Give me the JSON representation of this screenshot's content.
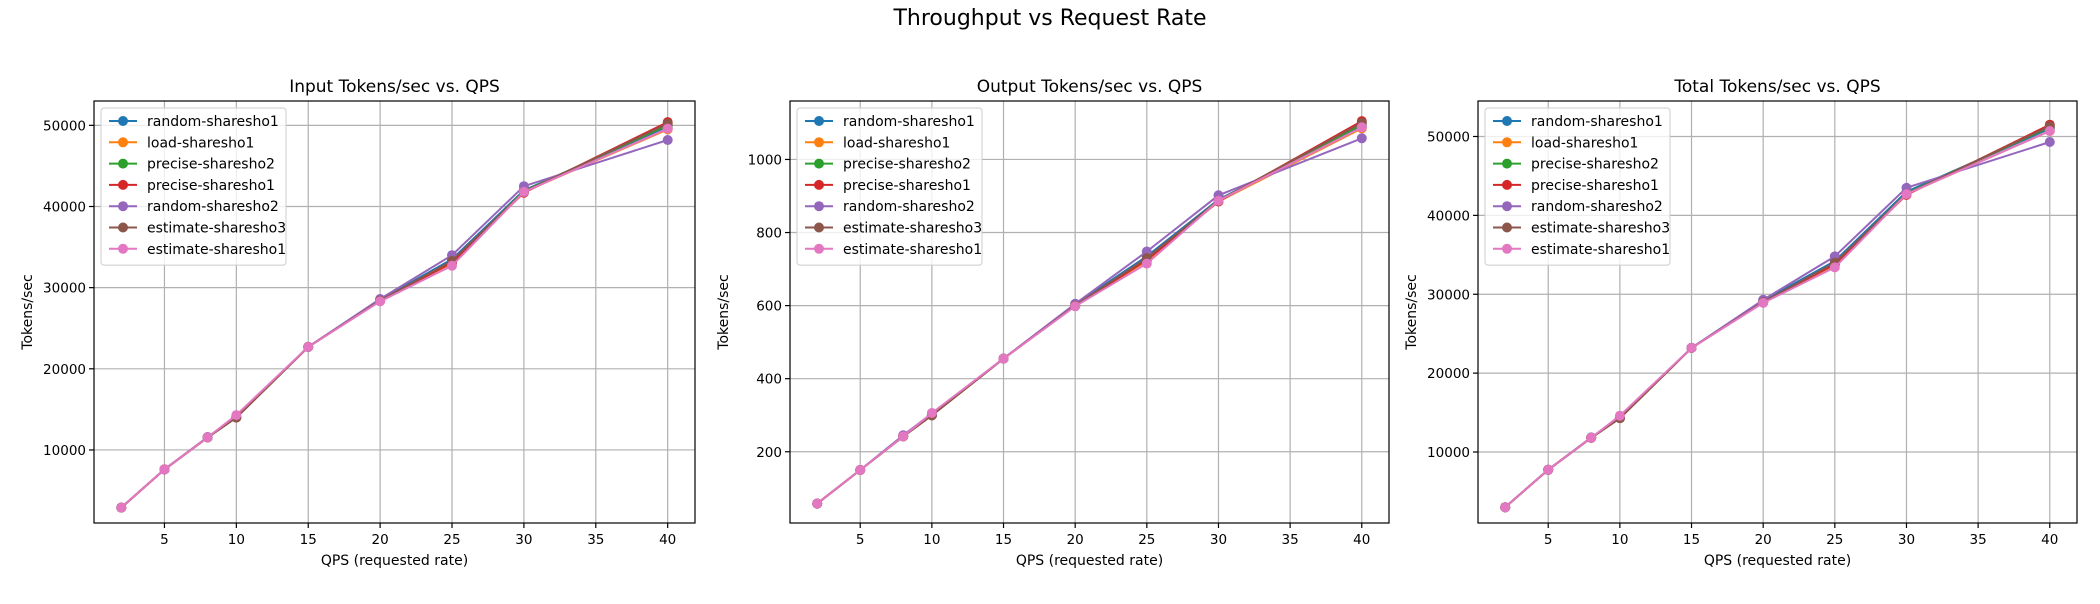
{
  "suptitle": "Throughput vs Request Rate",
  "series_styles": [
    {
      "name": "random-sharesho1",
      "color": "#1f77b4"
    },
    {
      "name": "load-sharesho1",
      "color": "#ff7f0e"
    },
    {
      "name": "precise-sharesho2",
      "color": "#2ca02c"
    },
    {
      "name": "precise-sharesho1",
      "color": "#d62728"
    },
    {
      "name": "random-sharesho2",
      "color": "#9467bd"
    },
    {
      "name": "estimate-sharesho3",
      "color": "#8c564b"
    },
    {
      "name": "estimate-sharesho1",
      "color": "#e377c2"
    }
  ],
  "chart_data": [
    {
      "type": "line",
      "title": "Input Tokens/sec vs. QPS",
      "xlabel": "QPS (requested rate)",
      "ylabel": "Tokens/sec",
      "xlim": [
        0.1,
        41.9
      ],
      "ylim": [
        1000,
        53000
      ],
      "xticks": [
        5,
        10,
        15,
        20,
        25,
        30,
        35,
        40
      ],
      "yticks": [
        10000,
        20000,
        30000,
        40000,
        50000
      ],
      "grid": true,
      "legend_position": "upper-left",
      "x": [
        2,
        5,
        8,
        10,
        15,
        20,
        25,
        30,
        40
      ],
      "series": [
        {
          "name": "random-sharesho1",
          "values": [
            2900,
            7600,
            11550,
            14000,
            22700,
            28500,
            33500,
            42000,
            49800
          ]
        },
        {
          "name": "load-sharesho1",
          "values": [
            2900,
            7600,
            11550,
            14000,
            22700,
            28400,
            33000,
            41800,
            49500
          ]
        },
        {
          "name": "precise-sharesho2",
          "values": [
            2900,
            7600,
            11550,
            14000,
            22700,
            28400,
            33200,
            41900,
            50000
          ]
        },
        {
          "name": "precise-sharesho1",
          "values": [
            2900,
            7600,
            11550,
            14000,
            22700,
            28400,
            33100,
            41700,
            50400
          ]
        },
        {
          "name": "random-sharesho2",
          "values": [
            2900,
            7600,
            11600,
            14100,
            22700,
            28600,
            34000,
            42500,
            48200
          ]
        },
        {
          "name": "estimate-sharesho3",
          "values": [
            2900,
            7600,
            11550,
            14000,
            22700,
            28400,
            33300,
            41800,
            50200
          ]
        },
        {
          "name": "estimate-sharesho1",
          "values": [
            2900,
            7600,
            11550,
            14300,
            22700,
            28300,
            32700,
            41800,
            49600
          ]
        }
      ]
    },
    {
      "type": "line",
      "title": "Output Tokens/sec vs. QPS",
      "xlabel": "QPS (requested rate)",
      "ylabel": "Tokens/sec",
      "xlim": [
        0.1,
        41.9
      ],
      "ylim": [
        5,
        1160
      ],
      "xticks": [
        5,
        10,
        15,
        20,
        25,
        30,
        35,
        40
      ],
      "yticks": [
        200,
        400,
        600,
        800,
        1000
      ],
      "grid": true,
      "legend_position": "upper-left",
      "x": [
        2,
        5,
        8,
        10,
        15,
        20,
        25,
        30,
        40
      ],
      "series": [
        {
          "name": "random-sharesho1",
          "values": [
            58,
            150,
            242,
            300,
            455,
            603,
            735,
            890,
            1090
          ]
        },
        {
          "name": "load-sharesho1",
          "values": [
            58,
            150,
            242,
            300,
            455,
            600,
            722,
            885,
            1085
          ]
        },
        {
          "name": "precise-sharesho2",
          "values": [
            58,
            150,
            242,
            300,
            455,
            600,
            728,
            888,
            1095
          ]
        },
        {
          "name": "precise-sharesho1",
          "values": [
            58,
            150,
            242,
            300,
            455,
            600,
            725,
            885,
            1105
          ]
        },
        {
          "name": "random-sharesho2",
          "values": [
            58,
            150,
            245,
            305,
            455,
            605,
            748,
            902,
            1058
          ]
        },
        {
          "name": "estimate-sharesho3",
          "values": [
            58,
            150,
            242,
            300,
            455,
            600,
            730,
            887,
            1100
          ]
        },
        {
          "name": "estimate-sharesho1",
          "values": [
            58,
            150,
            242,
            306,
            455,
            598,
            715,
            887,
            1088
          ]
        }
      ]
    },
    {
      "type": "line",
      "title": "Total Tokens/sec vs. QPS",
      "xlabel": "QPS (requested rate)",
      "ylabel": "Tokens/sec",
      "xlim": [
        0.1,
        41.9
      ],
      "ylim": [
        1000,
        54500
      ],
      "xticks": [
        5,
        10,
        15,
        20,
        25,
        30,
        35,
        40
      ],
      "yticks": [
        10000,
        20000,
        30000,
        40000,
        50000
      ],
      "grid": true,
      "legend_position": "upper-left",
      "x": [
        2,
        5,
        8,
        10,
        15,
        20,
        25,
        30,
        40
      ],
      "series": [
        {
          "name": "random-sharesho1",
          "values": [
            3000,
            7750,
            11800,
            14300,
            23200,
            29200,
            34200,
            43000,
            51000
          ]
        },
        {
          "name": "load-sharesho1",
          "values": [
            3000,
            7750,
            11800,
            14300,
            23200,
            29000,
            33700,
            42700,
            50700
          ]
        },
        {
          "name": "precise-sharesho2",
          "values": [
            3000,
            7750,
            11800,
            14300,
            23200,
            29000,
            33900,
            42800,
            51200
          ]
        },
        {
          "name": "precise-sharesho1",
          "values": [
            3000,
            7750,
            11800,
            14300,
            23200,
            29000,
            33800,
            42600,
            51500
          ]
        },
        {
          "name": "random-sharesho2",
          "values": [
            3000,
            7750,
            11850,
            14400,
            23200,
            29300,
            34800,
            43500,
            49300
          ]
        },
        {
          "name": "estimate-sharesho3",
          "values": [
            3000,
            7750,
            11800,
            14300,
            23200,
            29000,
            34000,
            42700,
            51300
          ]
        },
        {
          "name": "estimate-sharesho1",
          "values": [
            3000,
            7750,
            11800,
            14600,
            23200,
            28900,
            33400,
            42700,
            50700
          ]
        }
      ]
    }
  ]
}
